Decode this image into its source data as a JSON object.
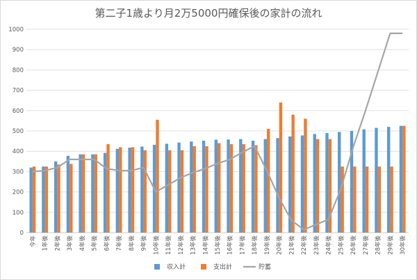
{
  "chart_data": {
    "type": "bar",
    "title": "第二子1歳より月2万5000円確保後の家計の流れ",
    "xlabel": "",
    "ylabel": "",
    "ylim": [
      0,
      1000
    ],
    "yticks": [
      0,
      100,
      200,
      300,
      400,
      500,
      600,
      700,
      800,
      900,
      1000
    ],
    "grid": true,
    "legend_position": "bottom",
    "categories": [
      "今年",
      "1年後",
      "2年後",
      "3年後",
      "4年後",
      "5年後",
      "6年後",
      "7年後",
      "8年後",
      "9年後",
      "10年後",
      "11年後",
      "12年後",
      "13年後",
      "14年後",
      "15年後",
      "16年後",
      "17年後",
      "18年後",
      "19年後",
      "20年後",
      "21年後",
      "22年後",
      "23年後",
      "24年後",
      "25年後",
      "26年後",
      "27年後",
      "28年後",
      "29年後",
      "30年後"
    ],
    "series": [
      {
        "name": "収入計",
        "type": "bar",
        "color": "#5b9bd5",
        "values": [
          320,
          325,
          350,
          378,
          385,
          385,
          392,
          412,
          418,
          423,
          432,
          437,
          443,
          448,
          452,
          457,
          458,
          460,
          452,
          460,
          465,
          473,
          478,
          485,
          490,
          495,
          500,
          508,
          515,
          520,
          525
        ]
      },
      {
        "name": "支出計",
        "type": "bar",
        "color": "#ed7d31",
        "values": [
          325,
          325,
          335,
          338,
          385,
          385,
          435,
          420,
          420,
          405,
          555,
          405,
          405,
          425,
          425,
          440,
          435,
          435,
          430,
          510,
          640,
          580,
          560,
          460,
          460,
          325,
          325,
          325,
          325,
          325,
          525
        ]
      },
      {
        "name": "貯蓄",
        "type": "line",
        "color": "#a5a5a5",
        "values": [
          300,
          305,
          320,
          360,
          360,
          360,
          315,
          305,
          305,
          320,
          200,
          235,
          270,
          295,
          315,
          340,
          360,
          395,
          425,
          305,
          170,
          60,
          15,
          40,
          65,
          215,
          420,
          600,
          790,
          980,
          980
        ]
      }
    ]
  }
}
